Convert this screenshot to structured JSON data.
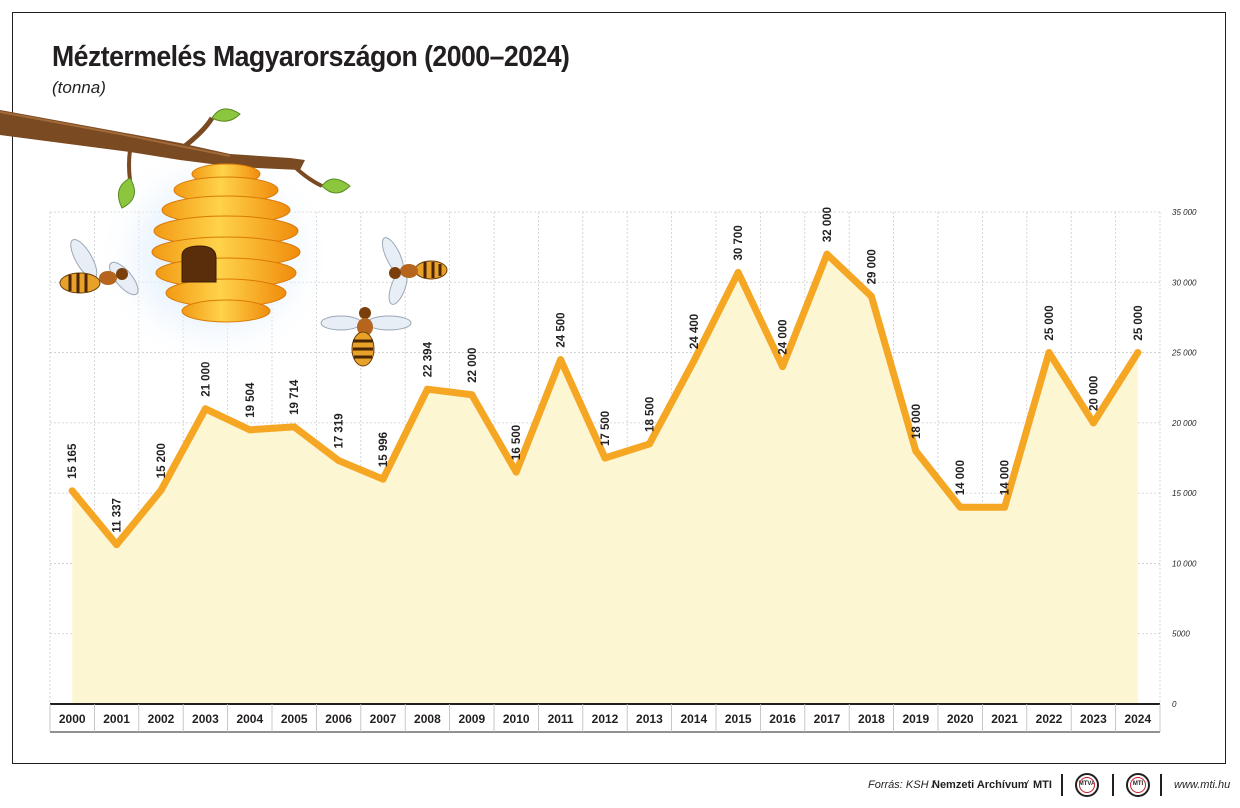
{
  "header": {
    "title": "Méztermelés Magyarországon (2000–2024)",
    "subtitle": "(tonna)"
  },
  "chart_data": {
    "type": "area",
    "title": "Méztermelés Magyarországon (2000–2024)",
    "subtitle": "(tonna)",
    "categories": [
      "2000",
      "2001",
      "2002",
      "2003",
      "2004",
      "2005",
      "2006",
      "2007",
      "2008",
      "2009",
      "2010",
      "2011",
      "2012",
      "2013",
      "2014",
      "2015",
      "2016",
      "2017",
      "2018",
      "2019",
      "2020",
      "2021",
      "2022",
      "2023",
      "2024"
    ],
    "values": [
      15165,
      11337,
      15200,
      21000,
      19504,
      19714,
      17319,
      15996,
      22394,
      22000,
      16500,
      24500,
      17500,
      18500,
      24400,
      30700,
      24000,
      32000,
      29000,
      18000,
      14000,
      14000,
      25000,
      20000,
      25000
    ],
    "data_labels": [
      "15 165",
      "11 337",
      "15 200",
      "21 000",
      "19 504",
      "19 714",
      "17 319",
      "15 996",
      "22 394",
      "22 000",
      "16 500",
      "24 500",
      "17 500",
      "18 500",
      "24 400",
      "30 700",
      "24 000",
      "32 000",
      "29 000",
      "18 000",
      "14 000",
      "14 000",
      "25 000",
      "20 000",
      "25 000"
    ],
    "y_ticks": [
      0,
      5000,
      10000,
      15000,
      20000,
      25000,
      30000,
      35000
    ],
    "y_tick_labels": [
      "0",
      "5000",
      "10 000",
      "15 000",
      "20 000",
      "25 000",
      "30 000",
      "35 000"
    ],
    "ylim": [
      0,
      35000
    ],
    "y_axis_side": "right",
    "grid": true,
    "legend": "none",
    "colors": {
      "line": "#f5a623",
      "fill": "#fdf6d3",
      "grid": "#cccccc",
      "axis": "#231f20"
    }
  },
  "footer": {
    "source_prefix": "Forrás: KSH /",
    "source_archive": "Nemzeti Archívum",
    "source_sep": "/",
    "source_mti": "MTI",
    "logo_1": "MTVA",
    "logo_2": "MTI",
    "url": "www.mti.hu"
  },
  "decoration": {
    "illustration": "honey-beehive-with-bees",
    "icons": [
      "beehive-icon",
      "bee-icon",
      "branch-icon"
    ]
  }
}
